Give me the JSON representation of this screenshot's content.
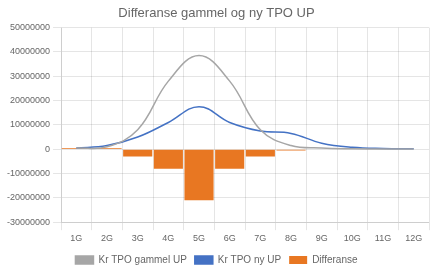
{
  "chart_data": {
    "type": "bar",
    "title": "Differanse gammel og ny TPO UP",
    "categories": [
      "1G",
      "2G",
      "3G",
      "4G",
      "5G",
      "6G",
      "7G",
      "8G",
      "9G",
      "10G",
      "11G",
      "12G"
    ],
    "series": [
      {
        "name": "Differanse",
        "type": "bar",
        "color": "#E87722",
        "values": [
          500000,
          500000,
          -3000000,
          -8000000,
          -21000000,
          -8000000,
          -3000000,
          -500000,
          0,
          0,
          0,
          0
        ]
      },
      {
        "name": "Kr TPO gammel UP",
        "type": "line",
        "color": "#a6a6a6",
        "marker": "none",
        "values": [
          500000,
          1000000,
          8000000,
          28000000,
          38500000,
          28000000,
          8000000,
          1500000,
          500000,
          200000,
          100000,
          50000
        ]
      },
      {
        "name": "Kr TPO ny UP",
        "type": "line",
        "color": "#4472C4",
        "marker": "none",
        "values": [
          500000,
          1500000,
          5000000,
          11000000,
          17500000,
          11000000,
          7500000,
          6500000,
          2500000,
          800000,
          300000,
          200000
        ]
      }
    ],
    "ylim": [
      -30000000,
      50000000
    ],
    "yticks": [
      -30000000,
      -20000000,
      -10000000,
      0,
      10000000,
      20000000,
      30000000,
      40000000,
      50000000
    ],
    "grid": true,
    "legend": "bottom"
  }
}
